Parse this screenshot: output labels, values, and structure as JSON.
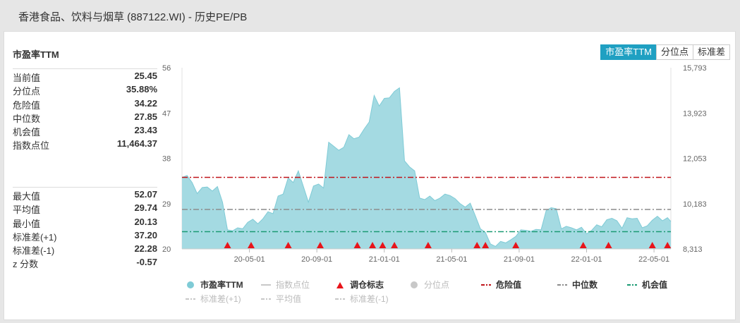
{
  "header": {
    "title": "香港食品、饮料与烟草 (887122.WI) - 历史PE/PB"
  },
  "metric_title": "市盈率TTM",
  "tabs": [
    {
      "label": "市盈率TTM",
      "active": true
    },
    {
      "label": "分位点",
      "active": false
    },
    {
      "label": "标准差",
      "active": false
    }
  ],
  "stats_top": [
    {
      "label": "当前值",
      "value": "25.45"
    },
    {
      "label": "分位点",
      "value": "35.88%"
    },
    {
      "label": "危险值",
      "value": "34.22"
    },
    {
      "label": "中位数",
      "value": "27.85"
    },
    {
      "label": "机会值",
      "value": "23.43"
    },
    {
      "label": "指数点位",
      "value": "11,464.37"
    }
  ],
  "stats_bottom": [
    {
      "label": "最大值",
      "value": "52.07"
    },
    {
      "label": "平均值",
      "value": "29.74"
    },
    {
      "label": "最小值",
      "value": "20.13"
    },
    {
      "label": "标准差(+1)",
      "value": "37.20"
    },
    {
      "label": "标准差(-1)",
      "value": "22.28"
    },
    {
      "label": "z 分数",
      "value": "-0.57"
    }
  ],
  "colors": {
    "area_fill": "#9fd8e0",
    "area_line": "#7fcbd6",
    "danger": "#c0141a",
    "median": "#8c8c8c",
    "opportunity": "#1a9a73",
    "marker": "#e8141a",
    "accent": "#1fa0c2"
  },
  "chart_data": {
    "type": "area",
    "ylim": [
      20,
      56
    ],
    "yticks": [
      "56",
      "47",
      "38",
      "29",
      "20"
    ],
    "y2ticks": [
      "15,793",
      "13,923",
      "12,053",
      "10,183",
      "8,313"
    ],
    "x_range": [
      0,
      29
    ],
    "xticks": [
      {
        "label": "20-05-01",
        "x": 4
      },
      {
        "label": "20-09-01",
        "x": 8
      },
      {
        "label": "21-01-01",
        "x": 12
      },
      {
        "label": "21-05-01",
        "x": 16
      },
      {
        "label": "21-09-01",
        "x": 20
      },
      {
        "label": "22-01-01",
        "x": 24
      },
      {
        "label": "22-05-01",
        "x": 28
      }
    ],
    "pe_series": [
      [
        0.0,
        34.2
      ],
      [
        0.3,
        34.6
      ],
      [
        0.6,
        33.2
      ],
      [
        0.9,
        31.0
      ],
      [
        1.2,
        32.2
      ],
      [
        1.5,
        32.3
      ],
      [
        1.8,
        31.5
      ],
      [
        2.1,
        32.4
      ],
      [
        2.4,
        29.3
      ],
      [
        2.7,
        23.8
      ],
      [
        3.0,
        23.6
      ],
      [
        3.3,
        24.2
      ],
      [
        3.6,
        24.0
      ],
      [
        3.9,
        25.3
      ],
      [
        4.2,
        25.9
      ],
      [
        4.5,
        25.0
      ],
      [
        4.8,
        26.0
      ],
      [
        5.1,
        27.4
      ],
      [
        5.4,
        27.0
      ],
      [
        5.7,
        30.5
      ],
      [
        6.0,
        30.9
      ],
      [
        6.3,
        34.1
      ],
      [
        6.6,
        33.2
      ],
      [
        6.9,
        35.5
      ],
      [
        7.2,
        32.4
      ],
      [
        7.5,
        29.3
      ],
      [
        7.8,
        32.5
      ],
      [
        8.1,
        32.9
      ],
      [
        8.4,
        32.1
      ],
      [
        8.7,
        41.2
      ],
      [
        9.0,
        40.4
      ],
      [
        9.3,
        39.6
      ],
      [
        9.6,
        40.2
      ],
      [
        9.9,
        42.7
      ],
      [
        10.2,
        41.9
      ],
      [
        10.5,
        42.2
      ],
      [
        10.8,
        43.8
      ],
      [
        11.1,
        45.2
      ],
      [
        11.4,
        50.5
      ],
      [
        11.7,
        48.4
      ],
      [
        12.0,
        49.9
      ],
      [
        12.3,
        50.0
      ],
      [
        12.6,
        51.3
      ],
      [
        12.9,
        52.0
      ],
      [
        13.2,
        37.5
      ],
      [
        13.5,
        36.3
      ],
      [
        13.8,
        35.5
      ],
      [
        14.1,
        30.1
      ],
      [
        14.4,
        29.8
      ],
      [
        14.7,
        30.5
      ],
      [
        15.0,
        29.6
      ],
      [
        15.3,
        30.1
      ],
      [
        15.6,
        30.9
      ],
      [
        15.9,
        30.6
      ],
      [
        16.2,
        30.0
      ],
      [
        16.5,
        29.0
      ],
      [
        16.8,
        28.3
      ],
      [
        17.1,
        29.1
      ],
      [
        17.4,
        26.6
      ],
      [
        17.7,
        24.0
      ],
      [
        18.0,
        23.3
      ],
      [
        18.3,
        21.0
      ],
      [
        18.6,
        20.5
      ],
      [
        18.9,
        21.5
      ],
      [
        19.2,
        21.2
      ],
      [
        19.5,
        21.8
      ],
      [
        19.8,
        22.5
      ],
      [
        20.1,
        23.8
      ],
      [
        20.4,
        23.7
      ],
      [
        20.7,
        23.5
      ],
      [
        21.0,
        23.9
      ],
      [
        21.3,
        23.8
      ],
      [
        21.6,
        27.6
      ],
      [
        21.9,
        28.2
      ],
      [
        22.2,
        28.0
      ],
      [
        22.5,
        24.0
      ],
      [
        22.8,
        24.5
      ],
      [
        23.1,
        24.2
      ],
      [
        23.4,
        23.8
      ],
      [
        23.7,
        24.3
      ],
      [
        24.0,
        23.0
      ],
      [
        24.3,
        23.7
      ],
      [
        24.6,
        24.8
      ],
      [
        24.9,
        24.4
      ],
      [
        25.2,
        25.8
      ],
      [
        25.5,
        26.1
      ],
      [
        25.8,
        25.6
      ],
      [
        26.1,
        24.1
      ],
      [
        26.4,
        26.2
      ],
      [
        26.7,
        26.0
      ],
      [
        27.0,
        26.1
      ],
      [
        27.3,
        24.2
      ],
      [
        27.6,
        24.6
      ],
      [
        27.9,
        25.7
      ],
      [
        28.2,
        26.5
      ],
      [
        28.5,
        25.6
      ],
      [
        28.8,
        26.2
      ],
      [
        29.0,
        25.45
      ]
    ],
    "danger": 34.22,
    "median": 27.85,
    "opportunity": 23.43,
    "rebalance_markers_x": [
      2.7,
      4.1,
      6.3,
      8.2,
      10.4,
      11.3,
      11.9,
      12.6,
      14.6,
      17.5,
      18.0,
      19.8,
      23.8,
      25.3,
      27.9,
      28.8
    ]
  },
  "legend": [
    {
      "label": "市盈率TTM",
      "symbol": "dot",
      "color": "#7fcbd6",
      "state": "active",
      "row": 0,
      "col": 0
    },
    {
      "label": "指数点位",
      "symbol": "line",
      "color": "#c8c8c8",
      "state": "muted",
      "row": 0,
      "col": 1
    },
    {
      "label": "调仓标志",
      "symbol": "triangle",
      "color": "#e8141a",
      "state": "active",
      "row": 0,
      "col": 2
    },
    {
      "label": "分位点",
      "symbol": "dot",
      "color": "#c8c8c8",
      "state": "muted",
      "row": 0,
      "col": 3
    },
    {
      "label": "危险值",
      "symbol": "dashdot",
      "color": "#c0141a",
      "state": "active",
      "row": 0,
      "col": 4
    },
    {
      "label": "中位数",
      "symbol": "dashdot",
      "color": "#8c8c8c",
      "state": "active",
      "row": 0,
      "col": 5
    },
    {
      "label": "机会值",
      "symbol": "dashdot",
      "color": "#1a9a73",
      "state": "active",
      "row": 0,
      "col": 6
    },
    {
      "label": "标准差(+1)",
      "symbol": "dashdot",
      "color": "#c8c8c8",
      "state": "muted",
      "row": 1,
      "col": 0
    },
    {
      "label": "平均值",
      "symbol": "dashdot",
      "color": "#c8c8c8",
      "state": "muted",
      "row": 1,
      "col": 1
    },
    {
      "label": "标准差(-1)",
      "symbol": "dashdot",
      "color": "#c8c8c8",
      "state": "muted",
      "row": 1,
      "col": 2
    }
  ]
}
